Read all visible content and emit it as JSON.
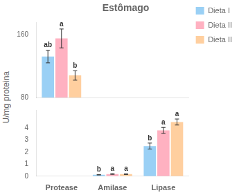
{
  "chart_data": [
    {
      "type": "bar",
      "title": "Estômago",
      "ylabel": "U/mg proteina",
      "categories": [
        "Protease",
        "Amilase",
        "Lipase"
      ],
      "series": [
        {
          "name": "Dieta I",
          "values": [
            132,
            null,
            null
          ],
          "errors": [
            8,
            null,
            null
          ],
          "annotations": [
            "ab",
            null,
            null
          ]
        },
        {
          "name": "Dieta II",
          "values": [
            155,
            null,
            null
          ],
          "errors": [
            12,
            null,
            null
          ],
          "annotations": [
            "a",
            null,
            null
          ]
        },
        {
          "name": "Dieta II",
          "values": [
            108,
            null,
            null
          ],
          "errors": [
            6,
            null,
            null
          ],
          "annotations": [
            "b",
            null,
            null
          ]
        }
      ],
      "ylim": [
        80,
        175
      ],
      "yticks": [
        80,
        160
      ],
      "grid": false,
      "legend": "right",
      "tick_labels": "y"
    },
    {
      "type": "bar",
      "categories": [
        "Protease",
        "Amilase",
        "Lipase"
      ],
      "series": [
        {
          "values": [
            null,
            0.12,
            2.5
          ],
          "errors": [
            null,
            0.02,
            0.25
          ],
          "annotations": [
            null,
            "b",
            "b"
          ]
        },
        {
          "values": [
            null,
            0.18,
            3.8
          ],
          "errors": [
            null,
            0.03,
            0.25
          ],
          "annotations": [
            null,
            "a",
            "a"
          ]
        },
        {
          "values": [
            null,
            0.17,
            4.5
          ],
          "errors": [
            null,
            0.03,
            0.25
          ],
          "annotations": [
            null,
            "a",
            "a"
          ]
        }
      ],
      "ylim": [
        0,
        5.5
      ],
      "yticks": [
        0,
        1,
        2,
        3,
        4
      ],
      "grid": false
    }
  ]
}
